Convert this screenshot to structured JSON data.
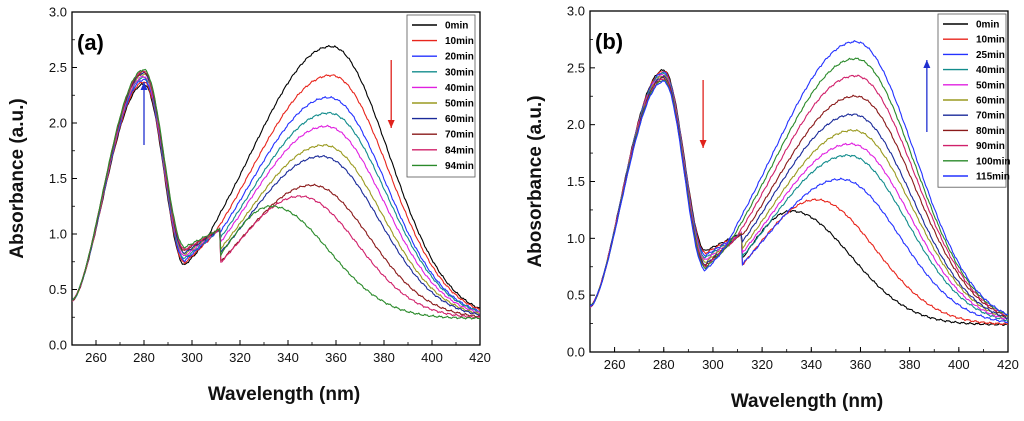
{
  "chart_data": [
    {
      "type": "line",
      "panel_label": "(a)",
      "xlabel": "Wavelength (nm)",
      "ylabel": "Absorbance (a.u.)",
      "xlim": [
        250,
        420
      ],
      "ylim": [
        0.0,
        3.0
      ],
      "xticks": [
        260,
        280,
        300,
        320,
        340,
        360,
        380,
        400,
        420
      ],
      "yticks": [
        "0.0",
        "0.5",
        "1.0",
        "1.5",
        "2.0",
        "2.5",
        "3.0"
      ],
      "legend_position": "top-right",
      "arrows": [
        {
          "x": 280,
          "direction": "up",
          "color": "#1f2fd0"
        },
        {
          "x": 383,
          "direction": "down",
          "color": "#e0221c"
        }
      ],
      "series": [
        {
          "name": "0min",
          "color": "#000000",
          "peak1": 2.35,
          "min": 0.72,
          "peak2": 2.69,
          "peak2_x": 358
        },
        {
          "name": "10min",
          "color": "#e8251c",
          "peak1": 2.37,
          "min": 0.74,
          "peak2": 2.43,
          "peak2_x": 358
        },
        {
          "name": "20min",
          "color": "#2432ff",
          "peak1": 2.39,
          "min": 0.76,
          "peak2": 2.23,
          "peak2_x": 357
        },
        {
          "name": "30min",
          "color": "#128c8c",
          "peak1": 2.41,
          "min": 0.78,
          "peak2": 2.09,
          "peak2_x": 357
        },
        {
          "name": "40min",
          "color": "#e020e0",
          "peak1": 2.42,
          "min": 0.8,
          "peak2": 1.97,
          "peak2_x": 356
        },
        {
          "name": "50min",
          "color": "#9a9a20",
          "peak1": 2.44,
          "min": 0.82,
          "peak2": 1.8,
          "peak2_x": 355
        },
        {
          "name": "60min",
          "color": "#1a2a99",
          "peak1": 2.45,
          "min": 0.83,
          "peak2": 1.7,
          "peak2_x": 354
        },
        {
          "name": "70min",
          "color": "#8a1a1a",
          "peak1": 2.46,
          "min": 0.85,
          "peak2": 1.44,
          "peak2_x": 350
        },
        {
          "name": "84min",
          "color": "#d0206a",
          "peak1": 2.47,
          "min": 0.86,
          "peak2": 1.34,
          "peak2_x": 345
        },
        {
          "name": "94min",
          "color": "#2a8a2a",
          "peak1": 2.48,
          "min": 0.88,
          "peak2": 1.25,
          "peak2_x": 333
        }
      ]
    },
    {
      "type": "line",
      "panel_label": "(b)",
      "xlabel": "Wavelength (nm)",
      "ylabel": "Abosorbance (a.u.)",
      "xlim": [
        250,
        420
      ],
      "ylim": [
        0.0,
        3.0
      ],
      "xticks": [
        260,
        280,
        300,
        320,
        340,
        360,
        380,
        400,
        420
      ],
      "yticks": [
        "0.0",
        "0.5",
        "1.0",
        "1.5",
        "2.0",
        "2.5",
        "3.0"
      ],
      "legend_position": "top-right",
      "arrows": [
        {
          "x": 296,
          "direction": "down",
          "color": "#e0221c"
        },
        {
          "x": 387,
          "direction": "up",
          "color": "#1f2fd0"
        }
      ],
      "series": [
        {
          "name": "0min",
          "color": "#000000",
          "peak1": 2.48,
          "min": 0.89,
          "peak2": 1.24,
          "peak2_x": 332
        },
        {
          "name": "10min",
          "color": "#e8251c",
          "peak1": 2.47,
          "min": 0.87,
          "peak2": 1.34,
          "peak2_x": 342
        },
        {
          "name": "25min",
          "color": "#2432ff",
          "peak1": 2.46,
          "min": 0.85,
          "peak2": 1.52,
          "peak2_x": 352
        },
        {
          "name": "40min",
          "color": "#128c8c",
          "peak1": 2.45,
          "min": 0.83,
          "peak2": 1.73,
          "peak2_x": 355
        },
        {
          "name": "50min",
          "color": "#e020e0",
          "peak1": 2.44,
          "min": 0.81,
          "peak2": 1.83,
          "peak2_x": 356
        },
        {
          "name": "60min",
          "color": "#9a9a20",
          "peak1": 2.43,
          "min": 0.79,
          "peak2": 1.95,
          "peak2_x": 357
        },
        {
          "name": "70min",
          "color": "#1a2a99",
          "peak1": 2.42,
          "min": 0.77,
          "peak2": 2.09,
          "peak2_x": 357
        },
        {
          "name": "80min",
          "color": "#8a1a1a",
          "peak1": 2.41,
          "min": 0.76,
          "peak2": 2.25,
          "peak2_x": 358
        },
        {
          "name": "90min",
          "color": "#d0206a",
          "peak1": 2.4,
          "min": 0.75,
          "peak2": 2.43,
          "peak2_x": 358
        },
        {
          "name": "100min",
          "color": "#2a8a2a",
          "peak1": 2.39,
          "min": 0.74,
          "peak2": 2.58,
          "peak2_x": 358
        },
        {
          "name": "115min",
          "color": "#2432ff",
          "peak1": 2.38,
          "min": 0.72,
          "peak2": 2.73,
          "peak2_x": 358
        }
      ]
    }
  ]
}
